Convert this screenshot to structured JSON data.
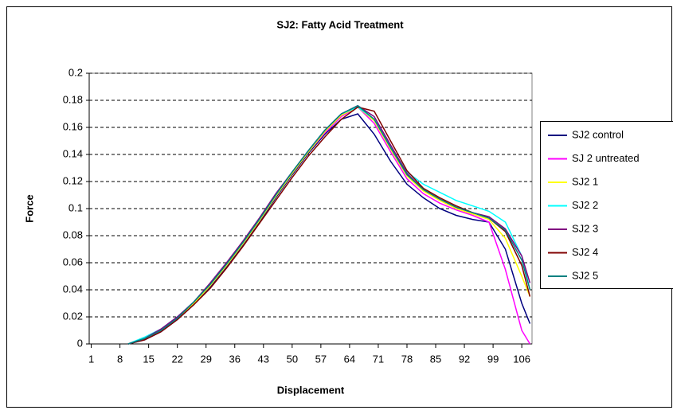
{
  "chart_data": {
    "type": "line",
    "title": "SJ2: Fatty Acid Treatment",
    "x_label": "Displacement",
    "y_label": "Force",
    "x": [
      10,
      14,
      18,
      22,
      26,
      30,
      34,
      38,
      42,
      46,
      50,
      54,
      58,
      62,
      66,
      70,
      74,
      78,
      82,
      86,
      90,
      94,
      98,
      102,
      106,
      108
    ],
    "xlim": [
      0.5,
      108.5
    ],
    "xticks": [
      1,
      8,
      15,
      22,
      29,
      36,
      43,
      50,
      57,
      64,
      71,
      78,
      85,
      92,
      99,
      106
    ],
    "ylim": [
      0,
      0.2
    ],
    "yticks": [
      0,
      0.02,
      0.04,
      0.06,
      0.08,
      0.1,
      0.12,
      0.14,
      0.16,
      0.18,
      0.2
    ],
    "grid": true,
    "legend": "right",
    "series": [
      {
        "name": "SJ2 control",
        "color": "#000080",
        "values": [
          0,
          0.003,
          0.009,
          0.018,
          0.029,
          0.042,
          0.057,
          0.073,
          0.09,
          0.108,
          0.125,
          0.141,
          0.155,
          0.166,
          0.17,
          0.155,
          0.135,
          0.118,
          0.108,
          0.1,
          0.095,
          0.092,
          0.09,
          0.07,
          0.03,
          0.015
        ]
      },
      {
        "name": "SJ 2 untreated",
        "color": "#ff00ff",
        "values": [
          0,
          0.004,
          0.01,
          0.019,
          0.03,
          0.043,
          0.058,
          0.074,
          0.091,
          0.109,
          0.126,
          0.142,
          0.156,
          0.168,
          0.175,
          0.163,
          0.142,
          0.122,
          0.111,
          0.104,
          0.099,
          0.095,
          0.09,
          0.055,
          0.01,
          0
        ]
      },
      {
        "name": "SJ2 1",
        "color": "#ffff00",
        "values": [
          0,
          0.004,
          0.01,
          0.019,
          0.03,
          0.043,
          0.058,
          0.074,
          0.091,
          0.109,
          0.126,
          0.142,
          0.157,
          0.169,
          0.175,
          0.165,
          0.144,
          0.124,
          0.113,
          0.106,
          0.1,
          0.096,
          0.092,
          0.078,
          0.05,
          0.035
        ]
      },
      {
        "name": "SJ2 2",
        "color": "#00ffff",
        "values": [
          0,
          0.005,
          0.011,
          0.02,
          0.031,
          0.044,
          0.059,
          0.075,
          0.092,
          0.11,
          0.127,
          0.143,
          0.158,
          0.17,
          0.175,
          0.166,
          0.146,
          0.127,
          0.118,
          0.112,
          0.106,
          0.102,
          0.098,
          0.09,
          0.065,
          0.04
        ]
      },
      {
        "name": "SJ2 3",
        "color": "#800080",
        "values": [
          0,
          0.004,
          0.011,
          0.02,
          0.031,
          0.045,
          0.06,
          0.076,
          0.093,
          0.111,
          0.127,
          0.143,
          0.158,
          0.17,
          0.176,
          0.168,
          0.147,
          0.126,
          0.114,
          0.107,
          0.101,
          0.097,
          0.094,
          0.085,
          0.065,
          0.045
        ]
      },
      {
        "name": "SJ2 4",
        "color": "#800000",
        "values": [
          0,
          0.003,
          0.009,
          0.018,
          0.029,
          0.041,
          0.056,
          0.072,
          0.089,
          0.106,
          0.123,
          0.139,
          0.153,
          0.166,
          0.175,
          0.172,
          0.15,
          0.128,
          0.115,
          0.108,
          0.102,
          0.097,
          0.093,
          0.083,
          0.058,
          0.035
        ]
      },
      {
        "name": "SJ2 5",
        "color": "#008080",
        "values": [
          0,
          0.004,
          0.01,
          0.019,
          0.031,
          0.044,
          0.059,
          0.075,
          0.092,
          0.11,
          0.127,
          0.143,
          0.158,
          0.17,
          0.176,
          0.166,
          0.145,
          0.125,
          0.114,
          0.107,
          0.101,
          0.097,
          0.093,
          0.084,
          0.062,
          0.04
        ]
      }
    ]
  }
}
